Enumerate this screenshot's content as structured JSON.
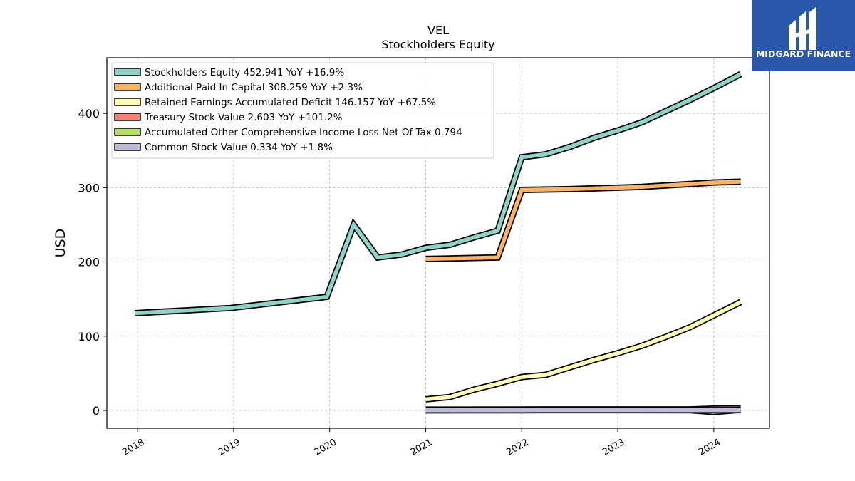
{
  "chart_data": {
    "type": "line",
    "title_line1": "VEL",
    "title_line2": "Stockholders  Equity",
    "xlabel": "",
    "ylabel": "USD",
    "xlim": [
      2017.68,
      2024.58
    ],
    "ylim": [
      -24,
      475
    ],
    "yticks": [
      0,
      100,
      200,
      300,
      400
    ],
    "xticks": [
      "2018",
      "2019",
      "2020",
      "2021",
      "2022",
      "2023",
      "2024"
    ],
    "grid": true,
    "legend_position": "top-left",
    "series": [
      {
        "name": "Stockholders Equity  452.941 YoY +16.9%",
        "color": "#8dd3c7",
        "points": [
          [
            2017.97,
            131
          ],
          [
            2018.97,
            138
          ],
          [
            2019.97,
            153
          ],
          [
            2020.25,
            250
          ],
          [
            2020.5,
            206
          ],
          [
            2020.75,
            210
          ],
          [
            2021.0,
            219
          ],
          [
            2021.25,
            223
          ],
          [
            2021.5,
            233
          ],
          [
            2021.75,
            242
          ],
          [
            2022.0,
            341
          ],
          [
            2022.25,
            345
          ],
          [
            2022.5,
            355
          ],
          [
            2022.75,
            367
          ],
          [
            2023.0,
            377
          ],
          [
            2023.25,
            388
          ],
          [
            2023.5,
            403
          ],
          [
            2023.75,
            418
          ],
          [
            2024.0,
            434
          ],
          [
            2024.28,
            453
          ]
        ]
      },
      {
        "name": "Additional Paid In Capital  308.259 YoY +2.3%",
        "color": "#fdb462",
        "points": [
          [
            2021.0,
            204
          ],
          [
            2021.75,
            206
          ],
          [
            2022.0,
            297
          ],
          [
            2022.5,
            298
          ],
          [
            2022.75,
            299
          ],
          [
            2023.0,
            300
          ],
          [
            2023.25,
            301
          ],
          [
            2023.75,
            305
          ],
          [
            2024.0,
            307
          ],
          [
            2024.28,
            308
          ]
        ]
      },
      {
        "name": "Retained Earnings Accumulated Deficit  146.157 YoY +67.5%",
        "color": "#ffffb3",
        "points": [
          [
            2021.0,
            15
          ],
          [
            2021.25,
            18
          ],
          [
            2021.5,
            28
          ],
          [
            2021.75,
            36
          ],
          [
            2022.0,
            45
          ],
          [
            2022.25,
            48
          ],
          [
            2022.5,
            58
          ],
          [
            2022.75,
            68
          ],
          [
            2023.0,
            77
          ],
          [
            2023.25,
            87
          ],
          [
            2023.5,
            99
          ],
          [
            2023.75,
            112
          ],
          [
            2024.0,
            128
          ],
          [
            2024.28,
            146
          ]
        ]
      },
      {
        "name": "Treasury Stock Value  2.603 YoY +101.2%",
        "color": "#fb8072",
        "points": [
          [
            2021.0,
            1
          ],
          [
            2022.0,
            1.2
          ],
          [
            2023.0,
            1.3
          ],
          [
            2023.75,
            1.3
          ],
          [
            2024.0,
            2.4
          ],
          [
            2024.28,
            2.6
          ]
        ]
      },
      {
        "name": "Accumulated Other Comprehensive Income Loss Net Of Tax  0.794",
        "color": "#b3de69",
        "points": [
          [
            2021.0,
            0.3
          ],
          [
            2022.0,
            0.5
          ],
          [
            2023.0,
            0.6
          ],
          [
            2023.75,
            0.4
          ],
          [
            2024.0,
            -2.0
          ],
          [
            2024.28,
            0.8
          ]
        ]
      },
      {
        "name": "Common Stock Value  0.334 YoY +1.8%",
        "color": "#bebada",
        "points": [
          [
            2021.0,
            0.3
          ],
          [
            2022.0,
            0.32
          ],
          [
            2023.0,
            0.33
          ],
          [
            2024.28,
            0.334
          ]
        ]
      }
    ]
  },
  "logo": {
    "text": "MIDGARD FINANCE",
    "background": "#2a58a8"
  }
}
